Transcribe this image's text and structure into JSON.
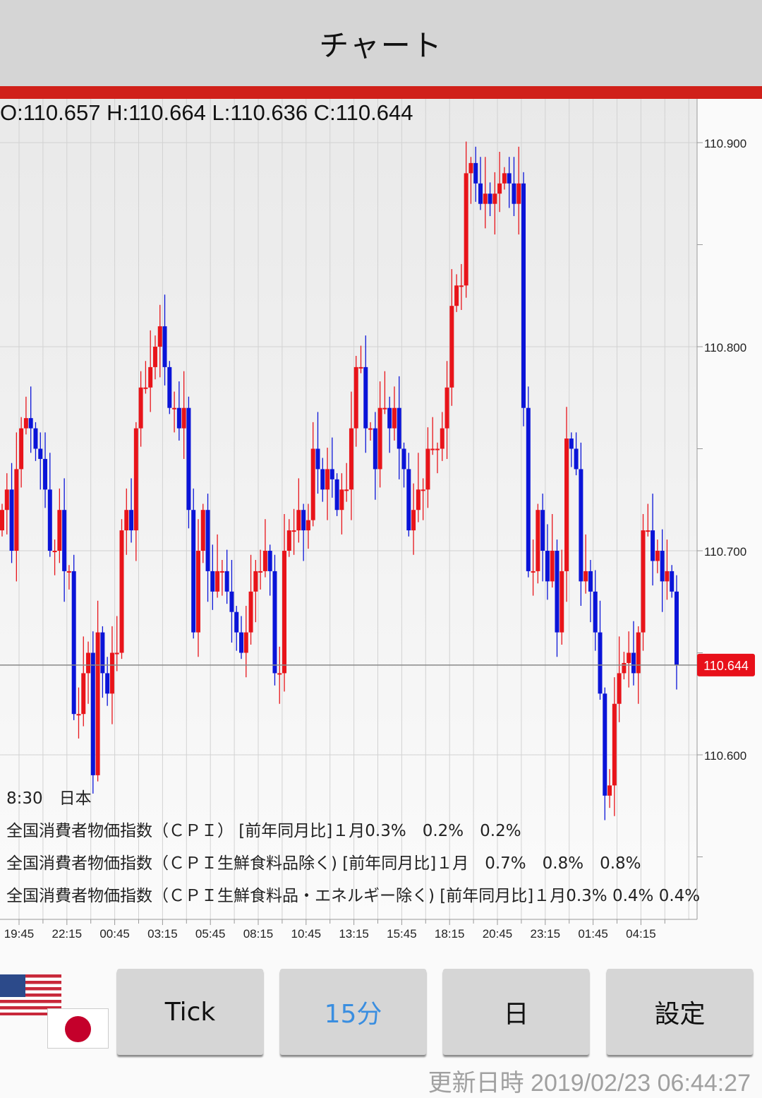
{
  "header": {
    "title": "チャート"
  },
  "ohlc_text": "O:110.657 H:110.664 L:110.636 C:110.644",
  "events": {
    "time_country": "8:30　日本",
    "lines": [
      "全国消費者物価指数（ＣＰＩ） [前年同月比]１月0.3%　0.2%　0.2%",
      "全国消費者物価指数（ＣＰＩ生鮮食料品除く) [前年同月比]１月　0.7%　0.8%　0.8%",
      "全国消費者物価指数（ＣＰＩ生鮮食料品・エネルギー除く) [前年同月比]１月0.3% 0.4% 0.4%"
    ]
  },
  "buttons": [
    {
      "label": "Tick"
    },
    {
      "label": "15分",
      "active": true
    },
    {
      "label": "日"
    },
    {
      "label": "設定"
    }
  ],
  "flags": [
    "us-flag",
    "jp-flag"
  ],
  "updated": "更新日時 2019/02/23 06:44:27",
  "colors": {
    "up": "#e8141a",
    "down": "#0a14d8",
    "accent": "#d0201a",
    "active_button_text": "#3a8ee0"
  },
  "chart_data": {
    "type": "candlestick",
    "interval": "15分",
    "ylim": [
      110.55,
      110.92
    ],
    "y_ticks": [
      "110.900",
      "110.800",
      "110.700",
      "110.600"
    ],
    "x_ticks": [
      "19:45",
      "22:15",
      "00:45",
      "03:15",
      "05:45",
      "08:15",
      "10:45",
      "13:15",
      "15:45",
      "18:15",
      "20:45",
      "23:15",
      "01:45",
      "04:15"
    ],
    "last_price": "110.644",
    "closes": [
      110.72,
      110.73,
      110.7,
      110.74,
      110.76,
      110.765,
      110.76,
      110.75,
      110.745,
      110.73,
      110.7,
      110.7,
      110.72,
      110.69,
      110.69,
      110.62,
      110.62,
      110.64,
      110.65,
      110.59,
      110.66,
      110.64,
      110.63,
      110.65,
      110.65,
      110.71,
      110.72,
      110.71,
      110.76,
      110.78,
      110.78,
      110.79,
      110.8,
      110.81,
      110.79,
      110.77,
      110.77,
      110.76,
      110.77,
      110.72,
      110.66,
      110.7,
      110.72,
      110.69,
      110.68,
      110.69,
      110.69,
      110.68,
      110.67,
      110.66,
      110.65,
      110.66,
      110.68,
      110.69,
      110.69,
      110.7,
      110.69,
      110.64,
      110.64,
      110.7,
      110.71,
      110.71,
      110.72,
      110.71,
      110.715,
      110.75,
      110.74,
      110.73,
      110.74,
      110.735,
      110.72,
      110.73,
      110.73,
      110.76,
      110.79,
      110.79,
      110.76,
      110.76,
      110.74,
      110.77,
      110.77,
      110.76,
      110.77,
      110.75,
      110.74,
      110.71,
      110.72,
      110.73,
      110.73,
      110.75,
      110.75,
      110.75,
      110.76,
      110.78,
      110.82,
      110.83,
      110.83,
      110.885,
      110.89,
      110.88,
      110.87,
      110.875,
      110.87,
      110.875,
      110.88,
      110.885,
      110.88,
      110.87,
      110.88,
      110.77,
      110.69,
      110.69,
      110.72,
      110.7,
      110.685,
      110.7,
      110.66,
      110.69,
      110.755,
      110.75,
      110.74,
      110.685,
      110.69,
      110.68,
      110.66,
      110.63,
      110.58,
      110.585,
      110.625,
      110.64,
      110.645,
      110.65,
      110.64,
      110.66,
      110.71,
      110.71,
      110.695,
      110.7,
      110.685,
      110.69,
      110.68,
      110.644
    ]
  }
}
